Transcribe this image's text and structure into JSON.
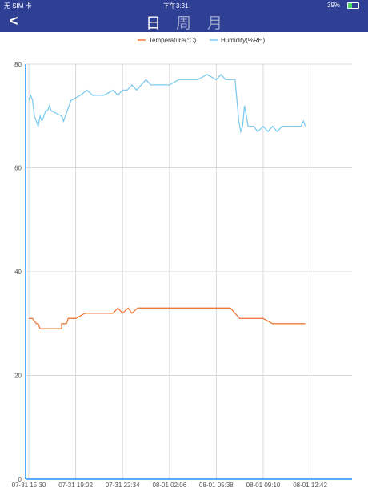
{
  "status": {
    "carrier": "无 SIM 卡",
    "time": "下午3:31",
    "battery_text": "39%"
  },
  "nav": {
    "back_glyph": "<",
    "tabs": [
      {
        "label": "日",
        "active": true
      },
      {
        "label": "周",
        "active": false
      },
      {
        "label": "月",
        "active": false
      }
    ]
  },
  "colors": {
    "header_bg": "#2f3f93",
    "temperature": "#f07a3c",
    "humidity": "#7fcbef",
    "grid": "#d8d8d8",
    "axis": "#1e90ff"
  },
  "chart_data": {
    "type": "line",
    "legend_position": "top-center",
    "ylim": [
      0,
      80
    ],
    "y_ticks": [
      0,
      20,
      40,
      60,
      80
    ],
    "x_ticks": [
      "07-31 15:30",
      "07-31 19:02",
      "07-31 22:34",
      "08-01 02:06",
      "08-01 05:38",
      "08-01 09:10",
      "08-01 12:42"
    ],
    "grid": true,
    "series": [
      {
        "name": "Temperature(°C)",
        "values": [
          [
            0.0,
            31
          ],
          [
            0.04,
            31
          ],
          [
            0.06,
            30.5
          ],
          [
            0.08,
            30
          ],
          [
            0.1,
            30
          ],
          [
            0.12,
            29
          ],
          [
            0.25,
            29
          ],
          [
            0.35,
            29
          ],
          [
            0.35,
            30
          ],
          [
            0.4,
            30
          ],
          [
            0.42,
            31
          ],
          [
            0.5,
            31
          ],
          [
            0.6,
            32
          ],
          [
            0.9,
            32
          ],
          [
            0.95,
            33
          ],
          [
            1.0,
            32
          ],
          [
            1.06,
            33
          ],
          [
            1.1,
            32
          ],
          [
            1.16,
            33
          ],
          [
            1.25,
            33
          ],
          [
            1.35,
            33
          ],
          [
            1.6,
            33
          ],
          [
            1.9,
            33
          ],
          [
            2.05,
            33
          ],
          [
            2.15,
            33
          ],
          [
            2.2,
            32
          ],
          [
            2.25,
            31
          ],
          [
            2.4,
            31
          ],
          [
            2.5,
            31
          ],
          [
            2.6,
            30
          ],
          [
            2.8,
            30
          ],
          [
            2.95,
            30
          ]
        ]
      },
      {
        "name": "Humidity(%RH)",
        "values": [
          [
            0.0,
            73
          ],
          [
            0.02,
            74
          ],
          [
            0.04,
            73
          ],
          [
            0.06,
            70
          ],
          [
            0.08,
            69
          ],
          [
            0.1,
            68
          ],
          [
            0.12,
            70
          ],
          [
            0.14,
            69
          ],
          [
            0.16,
            70
          ],
          [
            0.18,
            71
          ],
          [
            0.2,
            71
          ],
          [
            0.22,
            72
          ],
          [
            0.24,
            71
          ],
          [
            0.35,
            70
          ],
          [
            0.37,
            69
          ],
          [
            0.45,
            73
          ],
          [
            0.55,
            74
          ],
          [
            0.62,
            75
          ],
          [
            0.68,
            74
          ],
          [
            0.8,
            74
          ],
          [
            0.9,
            75
          ],
          [
            0.95,
            74
          ],
          [
            1.0,
            75
          ],
          [
            1.05,
            75
          ],
          [
            1.1,
            76
          ],
          [
            1.15,
            75
          ],
          [
            1.2,
            76
          ],
          [
            1.25,
            77
          ],
          [
            1.3,
            76
          ],
          [
            1.35,
            76
          ],
          [
            1.5,
            76
          ],
          [
            1.6,
            77
          ],
          [
            1.7,
            77
          ],
          [
            1.8,
            77
          ],
          [
            1.9,
            78
          ],
          [
            2.0,
            77
          ],
          [
            2.05,
            78
          ],
          [
            2.1,
            77
          ],
          [
            2.2,
            77
          ],
          [
            2.22,
            73
          ],
          [
            2.24,
            69
          ],
          [
            2.26,
            67
          ],
          [
            2.28,
            68
          ],
          [
            2.3,
            72
          ],
          [
            2.32,
            70
          ],
          [
            2.34,
            68
          ],
          [
            2.4,
            68
          ],
          [
            2.44,
            67
          ],
          [
            2.5,
            68
          ],
          [
            2.55,
            67
          ],
          [
            2.6,
            68
          ],
          [
            2.65,
            67
          ],
          [
            2.7,
            68
          ],
          [
            2.8,
            68
          ],
          [
            2.9,
            68
          ],
          [
            2.93,
            69
          ],
          [
            2.95,
            68
          ]
        ]
      }
    ]
  }
}
